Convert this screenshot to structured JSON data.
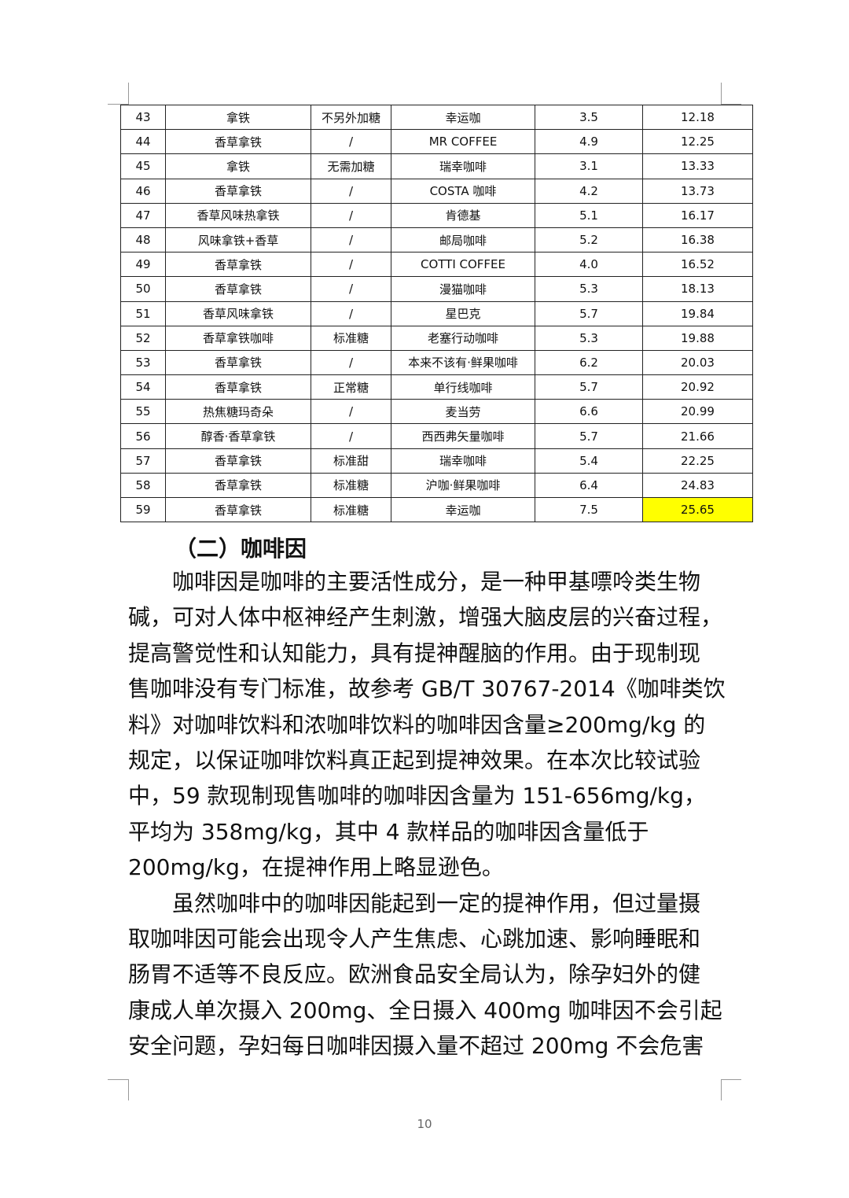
{
  "table": {
    "rows": [
      [
        "43",
        "拿铁",
        "不另外加糖",
        "幸运咖",
        "3.5",
        "12.18"
      ],
      [
        "44",
        "香草拿铁",
        "/",
        "MR COFFEE",
        "4.9",
        "12.25"
      ],
      [
        "45",
        "拿铁",
        "无需加糖",
        "瑞幸咖啡",
        "3.1",
        "13.33"
      ],
      [
        "46",
        "香草拿铁",
        "/",
        "COSTA 咖啡",
        "4.2",
        "13.73"
      ],
      [
        "47",
        "香草风味热拿铁",
        "/",
        "肯德基",
        "5.1",
        "16.17"
      ],
      [
        "48",
        "风味拿铁+香草",
        "/",
        "邮局咖啡",
        "5.2",
        "16.38"
      ],
      [
        "49",
        "香草拿铁",
        "/",
        "COTTI COFFEE",
        "4.0",
        "16.52"
      ],
      [
        "50",
        "香草拿铁",
        "/",
        "漫猫咖啡",
        "5.3",
        "18.13"
      ],
      [
        "51",
        "香草风味拿铁",
        "/",
        "星巴克",
        "5.7",
        "19.84"
      ],
      [
        "52",
        "香草拿铁咖啡",
        "标准糖",
        "老塞行动咖啡",
        "5.3",
        "19.88"
      ],
      [
        "53",
        "香草拿铁",
        "/",
        "本来不该有·鲜果咖啡",
        "6.2",
        "20.03"
      ],
      [
        "54",
        "香草拿铁",
        "正常糖",
        "单行线咖啡",
        "5.7",
        "20.92"
      ],
      [
        "55",
        "热焦糖玛奇朵",
        "/",
        "麦当劳",
        "6.6",
        "20.99"
      ],
      [
        "56",
        "醇香·香草拿铁",
        "/",
        "西西弗矢量咖啡",
        "5.7",
        "21.66"
      ],
      [
        "57",
        "香草拿铁",
        "标准甜",
        "瑞幸咖啡",
        "5.4",
        "22.25"
      ],
      [
        "58",
        "香草拿铁",
        "标准糖",
        "沪咖·鲜果咖啡",
        "6.4",
        "24.83"
      ],
      [
        "59",
        "香草拿铁",
        "标准糖",
        "幸运咖",
        "7.5",
        "25.65"
      ]
    ],
    "highlight_color": "#ffff00"
  },
  "section": {
    "heading": "（二）咖啡因",
    "lines": [
      "　　咖啡因是咖啡的主要活性成分，是一种甲基嘌呤类生物",
      "碱，可对人体中枢神经产生刺激，增强大脑皮层的兴奋过程，",
      "提高警觉性和认知能力，具有提神醒脑的作用。由于现制现",
      "售咖啡没有专门标准，故参考 GB/T 30767-2014《咖啡类饮",
      "料》对咖啡饮料和浓咖啡饮料的咖啡因含量≥200mg/kg 的",
      "规定，以保证咖啡饮料真正起到提神效果。在本次比较试验",
      "中，59 款现制现售咖啡的咖啡因含量为 151-656mg/kg，",
      "平均为 358mg/kg，其中 4 款样品的咖啡因含量低于",
      "200mg/kg，在提神作用上略显逊色。",
      "　　虽然咖啡中的咖啡因能起到一定的提神作用，但过量摄",
      "取咖啡因可能会出现令人产生焦虑、心跳加速、影响睡眠和",
      "肠胃不适等不良反应。欧洲食品安全局认为，除孕妇外的健",
      "康成人单次摄入 200mg、全日摄入 400mg 咖啡因不会引起",
      "安全问题，孕妇每日咖啡因摄入量不超过 200mg 不会危害"
    ]
  },
  "page_number": "10"
}
